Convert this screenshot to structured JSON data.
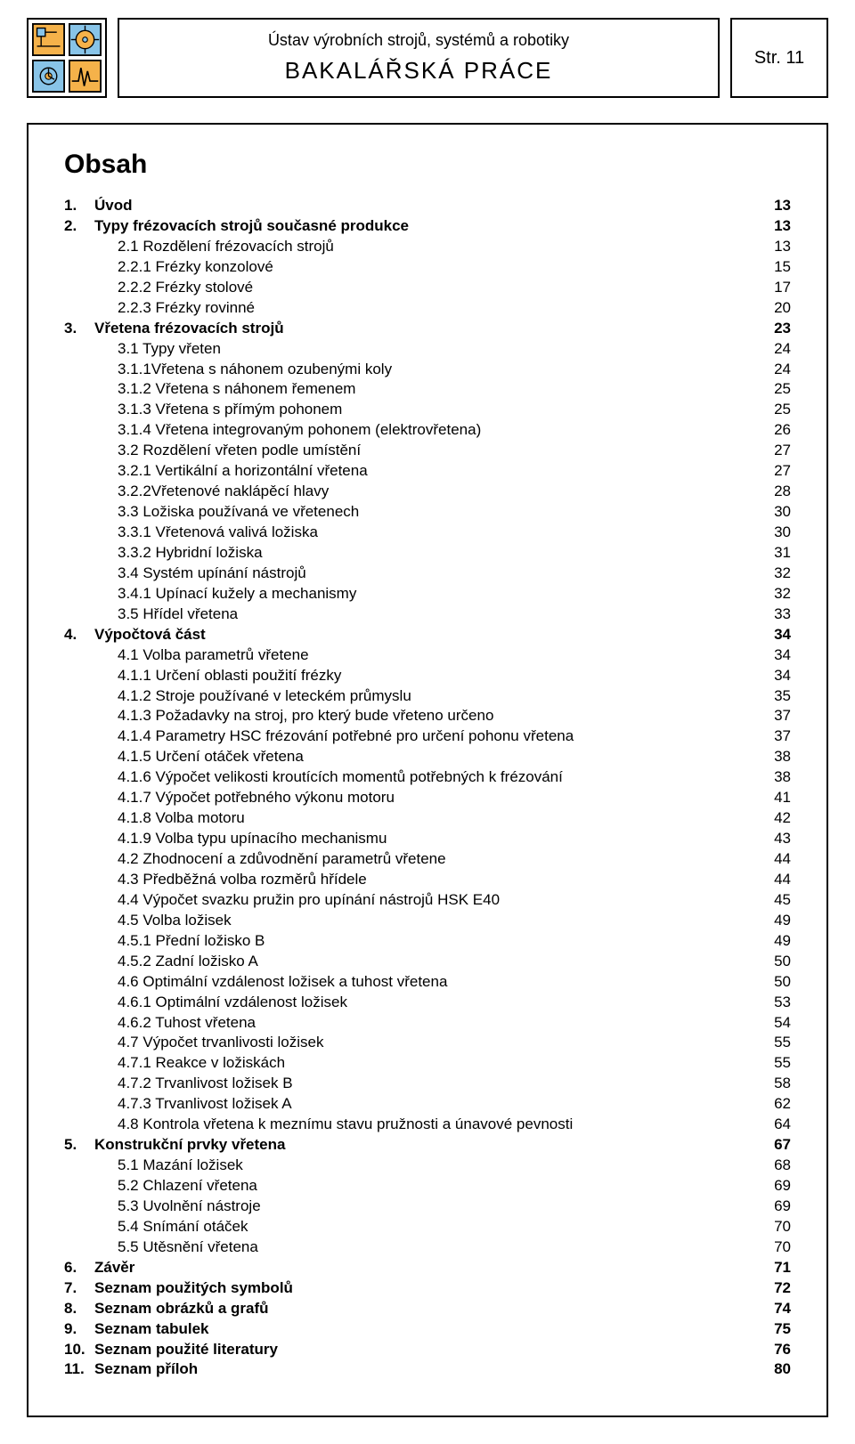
{
  "header": {
    "subtitle": "Ústav výrobních strojů, systémů a robotiky",
    "main_title": "BAKALÁŘSKÁ  PRÁCE",
    "page_label": "Str.  11"
  },
  "logo": {
    "colors": {
      "fill1": "#f5b24a",
      "fill2": "#88c4e8",
      "stroke": "#000000"
    }
  },
  "toc": {
    "heading": "Obsah",
    "entries": [
      {
        "level": 0,
        "num": "1.",
        "label": "Úvod",
        "page": "13",
        "bold": true
      },
      {
        "level": 0,
        "num": "2.",
        "label": "Typy frézovacích strojů současné produkce",
        "page": "13",
        "bold": true
      },
      {
        "level": 1,
        "num": "",
        "label": "2.1 Rozdělení frézovacích strojů",
        "page": "13"
      },
      {
        "level": 1,
        "num": "",
        "label": "2.2.1 Frézky konzolové",
        "page": "15"
      },
      {
        "level": 1,
        "num": "",
        "label": "2.2.2 Frézky stolové",
        "page": "17"
      },
      {
        "level": 1,
        "num": "",
        "label": "2.2.3 Frézky rovinné",
        "page": "20"
      },
      {
        "level": 0,
        "num": "3.",
        "label": "Vřetena frézovacích strojů",
        "page": "23",
        "bold": true
      },
      {
        "level": 1,
        "num": "",
        "label": "3.1 Typy vřeten",
        "page": "24"
      },
      {
        "level": 1,
        "num": "",
        "label": "3.1.1Vřetena s náhonem ozubenými koly",
        "page": "24"
      },
      {
        "level": 1,
        "num": "",
        "label": "3.1.2 Vřetena s náhonem řemenem",
        "page": "25"
      },
      {
        "level": 1,
        "num": "",
        "label": "3.1.3 Vřetena s přímým pohonem",
        "page": "25"
      },
      {
        "level": 1,
        "num": "",
        "label": "3.1.4 Vřetena integrovaným pohonem (elektrovřetena)",
        "page": "26"
      },
      {
        "level": 1,
        "num": "",
        "label": "3.2 Rozdělení vřeten podle umístění",
        "page": "27"
      },
      {
        "level": 1,
        "num": "",
        "label": "3.2.1 Vertikální a horizontální vřetena",
        "page": "27"
      },
      {
        "level": 1,
        "num": "",
        "label": "3.2.2Vřetenové naklápěcí hlavy",
        "page": "28"
      },
      {
        "level": 1,
        "num": "",
        "label": "3.3 Ložiska používaná ve vřetenech",
        "page": "30"
      },
      {
        "level": 1,
        "num": "",
        "label": "3.3.1 Vřetenová valivá ložiska",
        "page": "30"
      },
      {
        "level": 1,
        "num": "",
        "label": "3.3.2 Hybridní ložiska",
        "page": "31"
      },
      {
        "level": 1,
        "num": "",
        "label": "3.4 Systém upínání nástrojů",
        "page": "32"
      },
      {
        "level": 1,
        "num": "",
        "label": "3.4.1 Upínací kužely a mechanismy",
        "page": "32"
      },
      {
        "level": 1,
        "num": "",
        "label": "3.5 Hřídel vřetena",
        "page": "33"
      },
      {
        "level": 0,
        "num": "4.",
        "label": "Výpočtová část",
        "page": "34",
        "bold": true
      },
      {
        "level": 1,
        "num": "",
        "label": "4.1 Volba parametrů vřetene",
        "page": "34"
      },
      {
        "level": 1,
        "num": "",
        "label": "4.1.1 Určení oblasti použití frézky",
        "page": "34"
      },
      {
        "level": 1,
        "num": "",
        "label": "4.1.2 Stroje používané v leteckém průmyslu",
        "page": "35"
      },
      {
        "level": 1,
        "num": "",
        "label": "4.1.3 Požadavky na stroj, pro který bude vřeteno určeno",
        "page": "37"
      },
      {
        "level": 1,
        "num": "",
        "label": "4.1.4 Parametry HSC frézování potřebné pro určení pohonu vřetena",
        "page": "37"
      },
      {
        "level": 1,
        "num": "",
        "label": "4.1.5 Určení otáček vřetena",
        "page": "38"
      },
      {
        "level": 1,
        "num": "",
        "label": "4.1.6 Výpočet velikosti kroutících momentů potřebných k frézování",
        "page": "38"
      },
      {
        "level": 1,
        "num": "",
        "label": "4.1.7 Výpočet potřebného výkonu motoru",
        "page": "41"
      },
      {
        "level": 1,
        "num": "",
        "label": "4.1.8 Volba motoru",
        "page": "42"
      },
      {
        "level": 1,
        "num": "",
        "label": "4.1.9 Volba typu upínacího mechanismu",
        "page": "43"
      },
      {
        "level": 1,
        "num": "",
        "label": "4.2 Zhodnocení a zdůvodnění parametrů vřetene",
        "page": "44"
      },
      {
        "level": 1,
        "num": "",
        "label": "4.3 Předběžná volba rozměrů hřídele",
        "page": "44"
      },
      {
        "level": 1,
        "num": "",
        "label": "4.4 Výpočet svazku pružin pro upínání nástrojů HSK E40",
        "page": "45"
      },
      {
        "level": 1,
        "num": "",
        "label": "4.5 Volba ložisek",
        "page": "49"
      },
      {
        "level": 1,
        "num": "",
        "label": "4.5.1 Přední ložisko B",
        "page": "49"
      },
      {
        "level": 1,
        "num": "",
        "label": "4.5.2 Zadní ložisko A",
        "page": "50"
      },
      {
        "level": 1,
        "num": "",
        "label": "4.6 Optimální vzdálenost ložisek a tuhost vřetena",
        "page": "50"
      },
      {
        "level": 1,
        "num": "",
        "label": "4.6.1 Optimální vzdálenost ložisek",
        "page": "53"
      },
      {
        "level": 1,
        "num": "",
        "label": "4.6.2 Tuhost vřetena",
        "page": "54"
      },
      {
        "level": 1,
        "num": "",
        "label": "4.7 Výpočet trvanlivosti ložisek",
        "page": "55"
      },
      {
        "level": 1,
        "num": "",
        "label": "4.7.1 Reakce v ložiskách",
        "page": "55"
      },
      {
        "level": 1,
        "num": "",
        "label": "4.7.2 Trvanlivost ložisek B",
        "page": "58"
      },
      {
        "level": 1,
        "num": "",
        "label": "4.7.3 Trvanlivost ložisek A",
        "page": "62"
      },
      {
        "level": 1,
        "num": "",
        "label": "4.8 Kontrola vřetena k meznímu stavu pružnosti a únavové pevnosti",
        "page": "64"
      },
      {
        "level": 0,
        "num": "5.",
        "label": "Konstrukční prvky vřetena",
        "page": "67",
        "bold": true
      },
      {
        "level": 1,
        "num": "",
        "label": "5.1 Mazání ložisek",
        "page": "68"
      },
      {
        "level": 1,
        "num": "",
        "label": "5.2 Chlazení vřetena",
        "page": "69"
      },
      {
        "level": 1,
        "num": "",
        "label": "5.3 Uvolnění nástroje",
        "page": "69"
      },
      {
        "level": 1,
        "num": "",
        "label": "5.4 Snímání otáček",
        "page": "70"
      },
      {
        "level": 1,
        "num": "",
        "label": "5.5 Utěsnění vřetena",
        "page": "70"
      },
      {
        "level": 0,
        "num": "6.",
        "label": "Závěr",
        "page": "71",
        "bold": true
      },
      {
        "level": 0,
        "num": "7.",
        "label": "Seznam použitých symbolů",
        "page": "72",
        "bold": true
      },
      {
        "level": 0,
        "num": "8.",
        "label": "Seznam obrázků a grafů",
        "page": "74",
        "bold": true
      },
      {
        "level": 0,
        "num": "9.",
        "label": "Seznam tabulek",
        "page": "75",
        "bold": true
      },
      {
        "level": 0,
        "num": "10.",
        "label": "Seznam použité literatury",
        "page": "76",
        "bold": true
      },
      {
        "level": 0,
        "num": "11.",
        "label": "Seznam příloh",
        "page": "80",
        "bold": true
      }
    ]
  }
}
